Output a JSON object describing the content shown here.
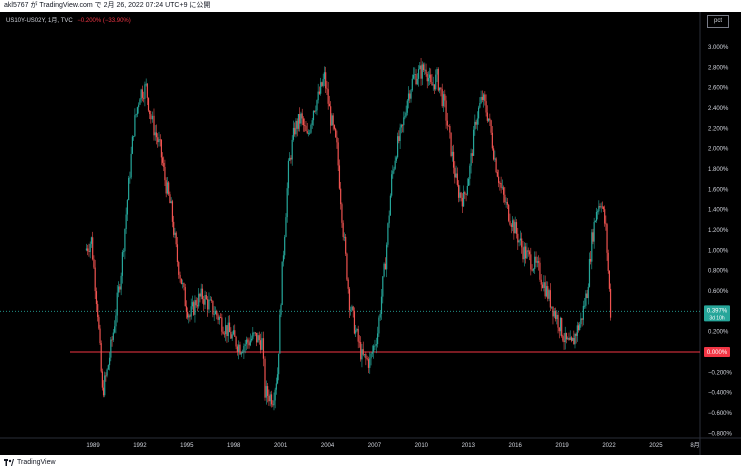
{
  "header": {
    "publish_text": "akl5767 が TradingView.com で 2月 26, 2022 07:24 UTC+9 に公開"
  },
  "legend": {
    "symbol": "US10Y-US02Y, 1月, TVC",
    "change": "−0.200% (−33.90%)"
  },
  "price_scale": {
    "unit_label": "pct",
    "ticks": [
      "3.000%",
      "2.800%",
      "2.600%",
      "2.400%",
      "2.200%",
      "2.000%",
      "1.800%",
      "1.600%",
      "1.400%",
      "1.200%",
      "1.000%",
      "0.800%",
      "0.600%",
      "0.200%",
      "−0.200%",
      "−0.400%",
      "−0.600%",
      "−0.800%"
    ]
  },
  "time_scale": {
    "ticks": [
      "1989",
      "1992",
      "1995",
      "1998",
      "2001",
      "2004",
      "2007",
      "2010",
      "2013",
      "2016",
      "2019",
      "2022",
      "2025",
      "8月"
    ]
  },
  "last_price": {
    "value": "0.397%",
    "countdown": "3d 10h",
    "color": "#26a69a"
  },
  "zero_line": {
    "label": "0.000%",
    "color": "#f23645"
  },
  "colors": {
    "up": "#26a69a",
    "down": "#ef5350",
    "background": "#000000"
  },
  "chart_data": {
    "type": "line",
    "title": "US10Y-US02Y",
    "xlabel": "",
    "ylabel": "pct",
    "ylim": [
      -0.85,
      3.1
    ],
    "grid": false,
    "x": [
      1988.5,
      1988.9,
      1989.3,
      1989.6,
      1989.9,
      1990.3,
      1990.8,
      1991.2,
      1991.6,
      1992.0,
      1992.4,
      1992.7,
      1992.9,
      1993.3,
      1993.6,
      1994.0,
      1994.4,
      1994.9,
      1995.2,
      1995.6,
      1996.0,
      1996.5,
      1997.0,
      1997.4,
      1997.9,
      1998.4,
      1998.9,
      1999.3,
      1999.8,
      2000.0,
      2000.5,
      2000.8,
      2001.1,
      2001.5,
      2001.9,
      2002.3,
      2002.7,
      2003.1,
      2003.4,
      2003.8,
      2004.2,
      2004.6,
      2005.0,
      2005.4,
      2005.8,
      2006.2,
      2006.7,
      2007.2,
      2007.7,
      2008.1,
      2008.4,
      2008.8,
      2009.1,
      2009.5,
      2009.9,
      2010.3,
      2010.6,
      2011.0,
      2011.5,
      2011.9,
      2012.3,
      2012.7,
      2013.1,
      2013.5,
      2013.9,
      2014.3,
      2014.7,
      2015.1,
      2015.5,
      2016.0,
      2016.5,
      2017.0,
      2017.5,
      2018.0,
      2018.5,
      2018.9,
      2019.2,
      2019.6,
      2019.9,
      2020.2,
      2020.6,
      2020.9,
      2021.2,
      2021.5,
      2021.8,
      2022.1
    ],
    "values": [
      1.0,
      1.1,
      0.4,
      -0.4,
      -0.2,
      0.2,
      0.8,
      1.5,
      2.2,
      2.55,
      2.6,
      2.3,
      2.2,
      2.0,
      1.7,
      1.4,
      0.9,
      0.5,
      0.35,
      0.5,
      0.55,
      0.45,
      0.35,
      0.25,
      0.15,
      0.05,
      0.1,
      0.15,
      0.1,
      -0.4,
      -0.45,
      -0.2,
      0.8,
      1.8,
      2.2,
      2.3,
      2.1,
      2.4,
      2.5,
      2.7,
      2.3,
      2.0,
      1.2,
      0.5,
      0.2,
      -0.05,
      -0.1,
      0.2,
      0.9,
      1.7,
      2.0,
      2.2,
      2.5,
      2.7,
      2.75,
      2.8,
      2.6,
      2.7,
      2.4,
      2.0,
      1.6,
      1.5,
      1.8,
      2.3,
      2.5,
      2.3,
      1.9,
      1.6,
      1.4,
      1.2,
      1.0,
      0.9,
      0.8,
      0.6,
      0.4,
      0.25,
      0.1,
      0.05,
      0.2,
      0.3,
      0.6,
      1.1,
      1.4,
      1.5,
      1.2,
      0.4
    ]
  }
}
